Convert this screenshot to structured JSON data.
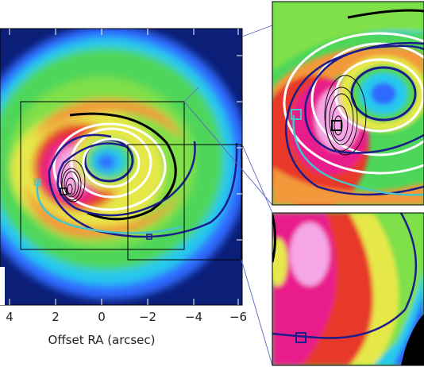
{
  "figure": {
    "x_axis_title": "Offset RA (arcsec)",
    "x_tick_labels": [
      "4",
      "2",
      "0",
      "−2",
      "−4",
      "−6"
    ]
  },
  "colors": {
    "outer_halo": "#0b1e78",
    "blue": "#2d6bff",
    "cyan": "#27c9ee",
    "green": "#4dd65a",
    "yellow": "#e6e84a",
    "orange": "#f29a3a",
    "red": "#e8392a",
    "magenta": "#e91e8c",
    "pink": "#f6a6e6",
    "spiral_model_blue": "#1c1c8c",
    "spiral_model_cyan": "#49c3c8",
    "ellipse_white": "#ffffff",
    "contour_black": "#000000",
    "connector_line": "#5a64c8"
  },
  "panels": [
    "main-map",
    "zoom-panel-top-right",
    "zoom-panel-bottom-right"
  ]
}
